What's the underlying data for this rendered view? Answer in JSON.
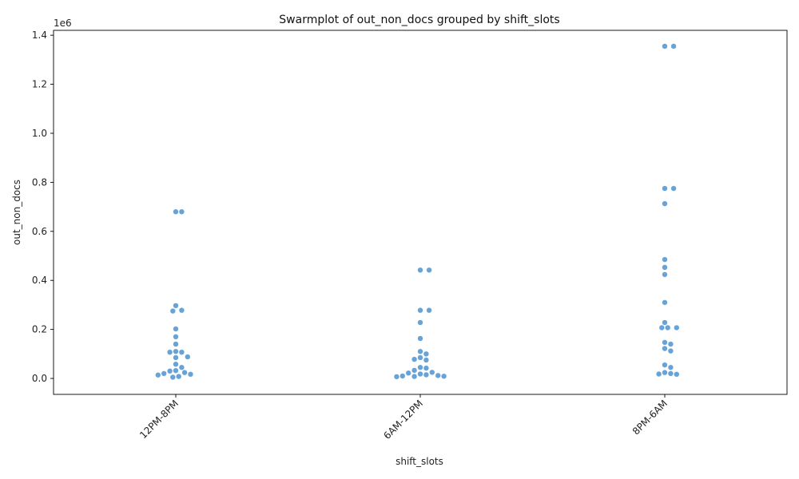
{
  "chart_data": {
    "type": "scatter",
    "subtype": "swarm",
    "title": "Swarmplot of out_non_docs grouped by shift_slots",
    "xlabel": "shift_slots",
    "ylabel": "out_non_docs",
    "y_offset_text": "1e6",
    "ylim": [
      -65000,
      1420000
    ],
    "y_ticks": [
      0,
      200000,
      400000,
      600000,
      800000,
      1000000,
      1200000,
      1400000
    ],
    "y_tick_labels": [
      "0.0",
      "0.2",
      "0.4",
      "0.6",
      "0.8",
      "1.0",
      "1.2",
      "1.4"
    ],
    "categories": [
      "12PM-8PM",
      "6AM-12PM",
      "8PM-6AM"
    ],
    "grid": false,
    "marker_color": "#5b9bd5",
    "series": [
      {
        "category": "12PM-8PM",
        "values": [
          680000,
          680000,
          297000,
          278000,
          275000,
          202000,
          170000,
          140000,
          110000,
          107000,
          107000,
          88000,
          85000,
          58000,
          45000,
          32000,
          30000,
          24000,
          20000,
          17000,
          14000,
          8000,
          5000
        ]
      },
      {
        "category": "6AM-12PM",
        "values": [
          442000,
          442000,
          278000,
          278000,
          228000,
          163000,
          110000,
          100000,
          85000,
          78000,
          75000,
          45000,
          42000,
          33000,
          25000,
          22000,
          18000,
          15000,
          12000,
          10000,
          9000,
          8000,
          7000
        ]
      },
      {
        "category": "8PM-6AM",
        "values": [
          1355000,
          1355000,
          775000,
          775000,
          713000,
          485000,
          453000,
          424000,
          310000,
          228000,
          207000,
          207000,
          207000,
          147000,
          140000,
          122000,
          112000,
          55000,
          45000,
          24000,
          20000,
          18000,
          17000
        ]
      }
    ]
  }
}
